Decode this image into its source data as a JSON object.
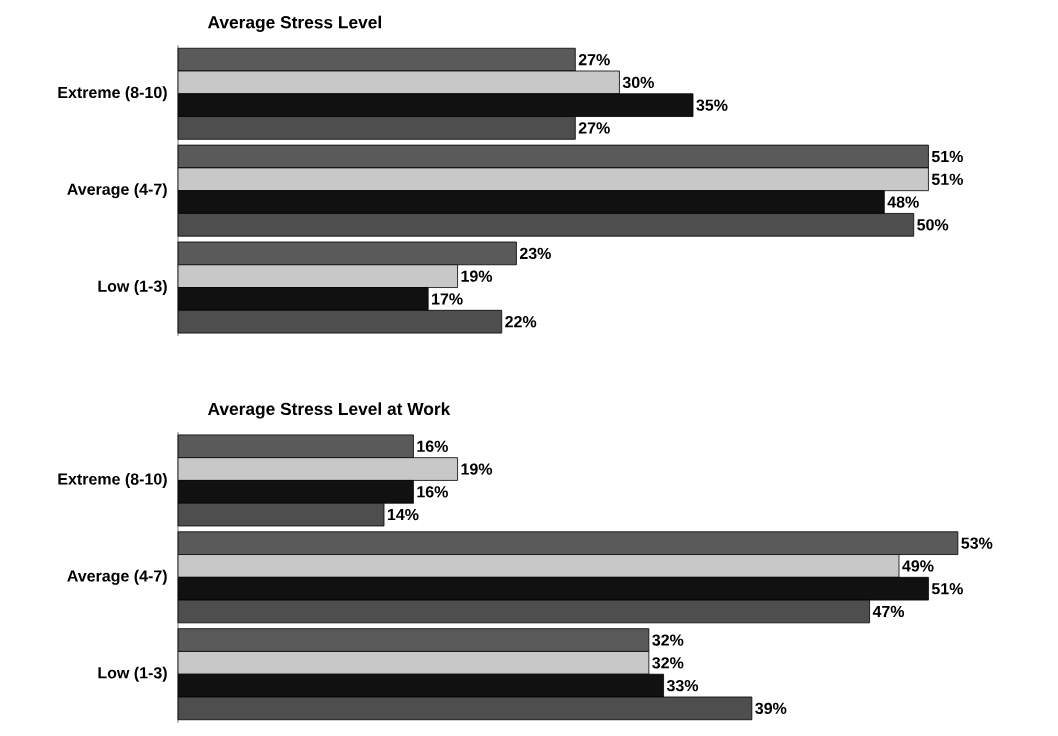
{
  "chart_data": [
    {
      "type": "bar",
      "orientation": "horizontal",
      "title": "Average Stress Level",
      "categories": [
        "Extreme (8-10)",
        "Average (4-7)",
        "Low (1-3)"
      ],
      "series": [
        {
          "color": "#5a5a5a",
          "values": [
            27,
            51,
            23
          ],
          "value_labels": [
            "27%",
            "51%",
            "23%"
          ]
        },
        {
          "color": "#c8c8c8",
          "values": [
            30,
            51,
            19
          ],
          "value_labels": [
            "30%",
            "51%",
            "19%"
          ]
        },
        {
          "color": "#111111",
          "values": [
            35,
            48,
            17
          ],
          "value_labels": [
            "35%",
            "48%",
            "17%"
          ]
        },
        {
          "color": "#4e4e4e",
          "values": [
            27,
            50,
            22
          ],
          "value_labels": [
            "27%",
            "50%",
            "22%"
          ]
        }
      ]
    },
    {
      "type": "bar",
      "orientation": "horizontal",
      "title": "Average Stress Level at Work",
      "categories": [
        "Extreme (8-10)",
        "Average (4-7)",
        "Low (1-3)"
      ],
      "series": [
        {
          "color": "#5a5a5a",
          "values": [
            16,
            53,
            32
          ],
          "value_labels": [
            "16%",
            "53%",
            "32%"
          ]
        },
        {
          "color": "#c8c8c8",
          "values": [
            19,
            49,
            32
          ],
          "value_labels": [
            "19%",
            "49%",
            "32%"
          ]
        },
        {
          "color": "#111111",
          "values": [
            16,
            51,
            33
          ],
          "value_labels": [
            "16%",
            "51%",
            "33%"
          ]
        },
        {
          "color": "#4e4e4e",
          "values": [
            14,
            47,
            39
          ],
          "value_labels": [
            "14%",
            "47%",
            "39%"
          ]
        }
      ]
    }
  ]
}
